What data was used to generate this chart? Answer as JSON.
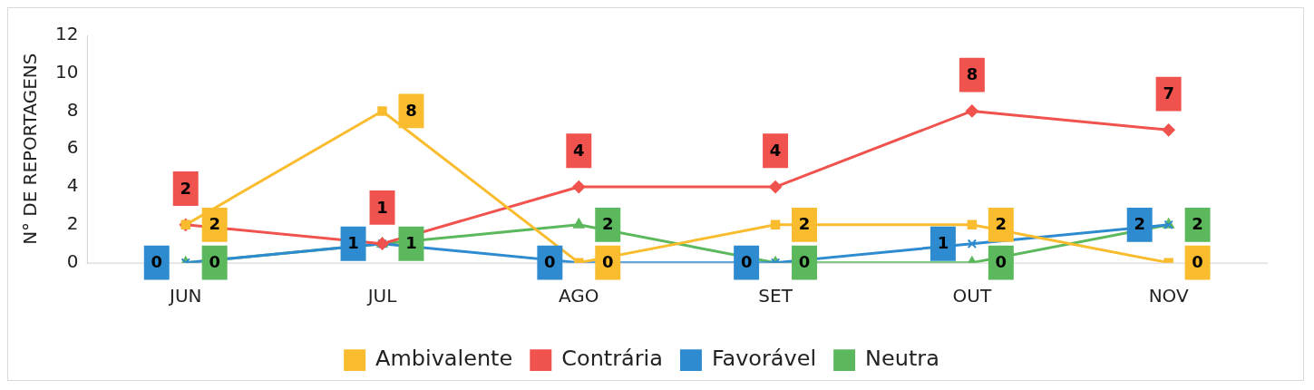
{
  "chart_data": {
    "type": "line",
    "ylabel": "N° DE REPORTAGENS",
    "categories": [
      "JUN",
      "JUL",
      "AGO",
      "SET",
      "OUT",
      "NOV"
    ],
    "series": [
      {
        "name": "Ambivalente",
        "color": "#f9bc2f",
        "marker": "square",
        "values": [
          2,
          8,
          0,
          2,
          2,
          0
        ]
      },
      {
        "name": "Contrária",
        "color": "#f0524d",
        "marker": "diamond",
        "values": [
          2,
          1,
          4,
          4,
          8,
          7
        ]
      },
      {
        "name": "Favorável",
        "color": "#2e8bcf",
        "marker": "cross",
        "values": [
          0,
          1,
          0,
          0,
          1,
          2
        ]
      },
      {
        "name": "Neutra",
        "color": "#5cb85c",
        "marker": "triangle",
        "values": [
          0,
          1,
          2,
          0,
          0,
          2
        ]
      }
    ],
    "ylim": [
      0,
      12
    ],
    "yticks": [
      0,
      2,
      4,
      6,
      8,
      10,
      12
    ],
    "grid": false,
    "legend": "bottom",
    "data_labels": true
  }
}
